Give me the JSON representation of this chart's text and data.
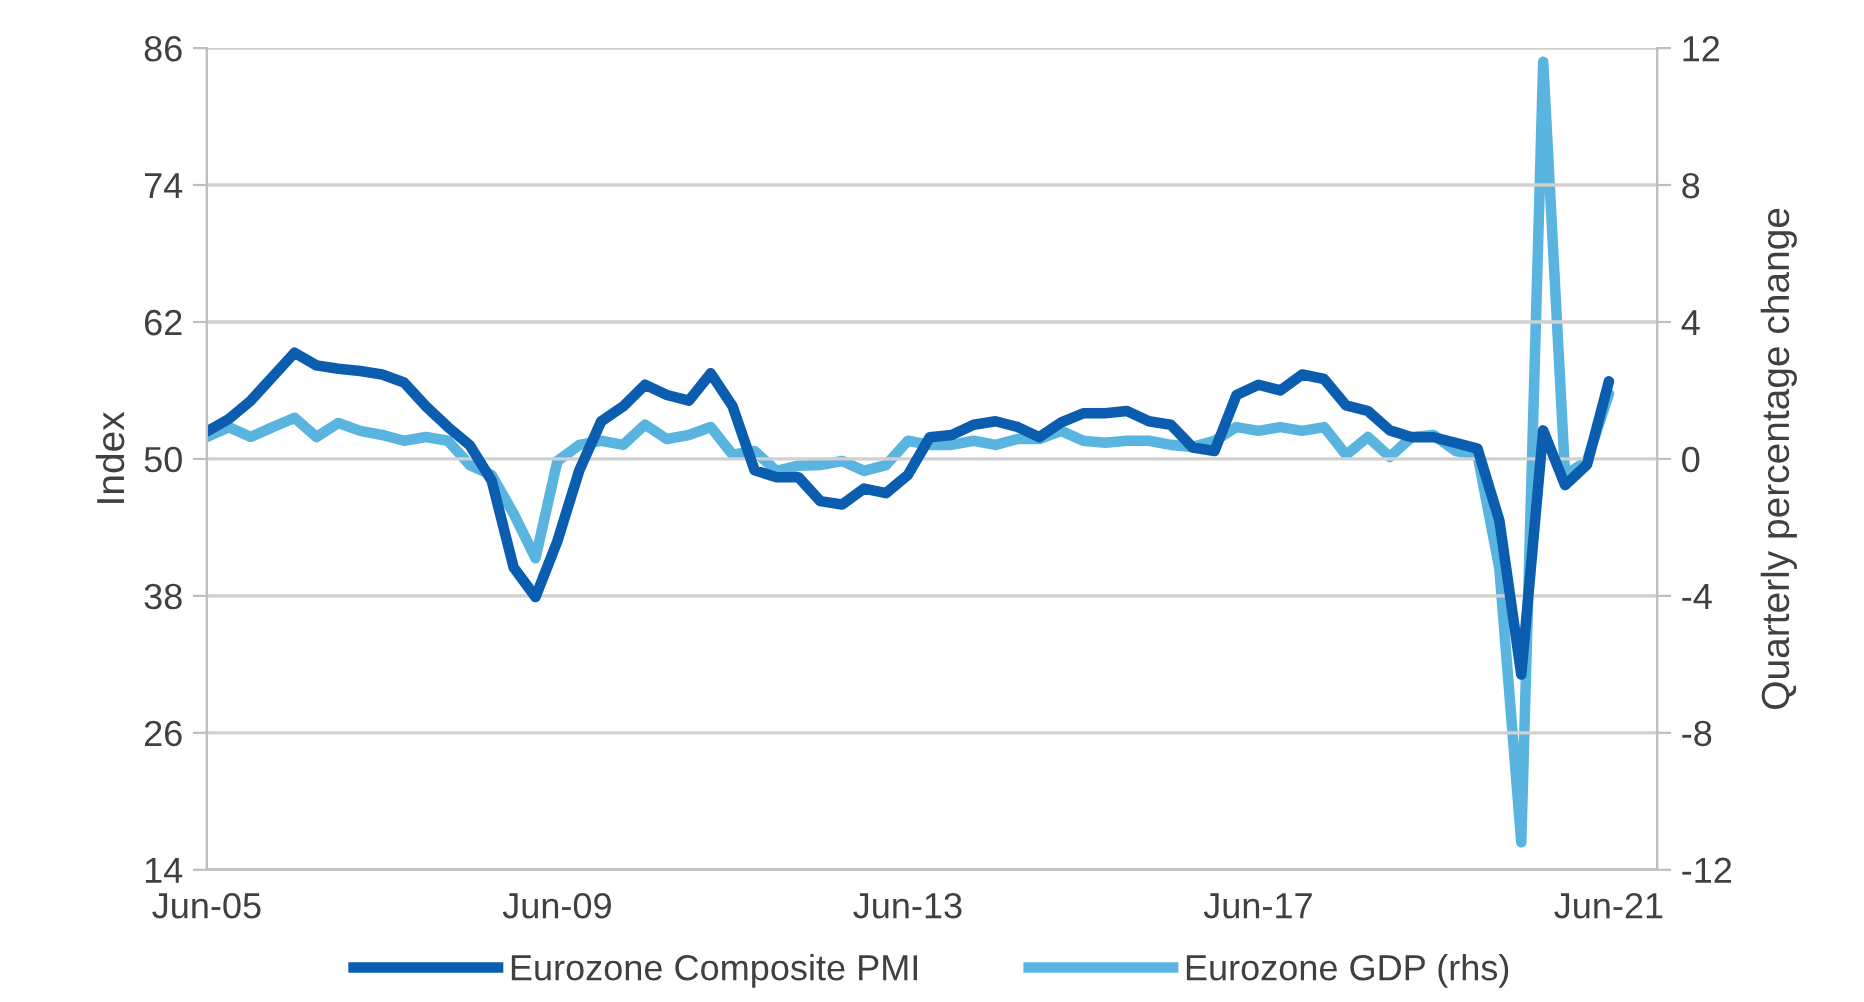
{
  "chart_data": {
    "type": "line",
    "ylabel": "Index",
    "y2label": "Quarterly percentage change",
    "categories": [
      "Jun-05",
      null,
      null,
      null,
      null,
      null,
      null,
      null,
      null,
      null,
      null,
      null,
      null,
      null,
      null,
      null,
      "Jun-09",
      null,
      null,
      null,
      null,
      null,
      null,
      null,
      null,
      null,
      null,
      null,
      null,
      null,
      null,
      null,
      "Jun-13",
      null,
      null,
      null,
      null,
      null,
      null,
      null,
      null,
      null,
      null,
      null,
      null,
      null,
      null,
      null,
      "Jun-17",
      null,
      null,
      null,
      null,
      null,
      null,
      null,
      null,
      null,
      null,
      null,
      null,
      null,
      null,
      null,
      "Jun-21"
    ],
    "series": [
      {
        "name": "Eurozone Composite PMI",
        "color": "#0b5eaf",
        "values": [
          52.4,
          53.5,
          55.1,
          57.2,
          59.3,
          58.2,
          57.9,
          57.7,
          57.4,
          56.7,
          54.6,
          52.8,
          51.2,
          48.1,
          40.5,
          37.9,
          42.8,
          49.0,
          53.3,
          54.6,
          56.5,
          55.6,
          55.1,
          57.5,
          54.6,
          49.0,
          48.4,
          48.4,
          46.3,
          46.0,
          47.4,
          47.0,
          48.6,
          51.9,
          52.1,
          53.0,
          53.3,
          52.8,
          51.9,
          53.2,
          54.0,
          54.0,
          54.2,
          53.3,
          53.0,
          51.0,
          50.7,
          55.6,
          56.5,
          56.0,
          57.4,
          57.0,
          54.7,
          54.2,
          52.5,
          51.9,
          51.9,
          51.4,
          50.9,
          44.6,
          31.1,
          52.5,
          47.7,
          49.5,
          56.8
        ]
      },
      {
        "name": "Eurozone GDP (rhs)",
        "color": "#5ab4e0",
        "axis": "y2",
        "values": [
          0.64,
          0.93,
          0.64,
          0.93,
          1.2,
          0.64,
          1.05,
          0.82,
          0.7,
          0.53,
          0.64,
          0.53,
          -0.18,
          -0.47,
          -1.6,
          -2.9,
          -0.06,
          0.41,
          0.53,
          0.41,
          1.0,
          0.58,
          0.7,
          0.93,
          0.12,
          0.23,
          -0.35,
          -0.2,
          -0.18,
          -0.06,
          -0.35,
          -0.18,
          0.53,
          0.41,
          0.41,
          0.53,
          0.41,
          0.58,
          0.58,
          0.82,
          0.53,
          0.47,
          0.53,
          0.53,
          0.41,
          0.35,
          0.53,
          0.93,
          0.82,
          0.93,
          0.82,
          0.93,
          0.12,
          0.64,
          0.06,
          0.64,
          0.7,
          0.23,
          0.12,
          -3.2,
          -11.2,
          11.6,
          -0.47,
          -0.06,
          1.9
        ]
      }
    ],
    "ylim": [
      14,
      86
    ],
    "yticks": [
      14,
      26,
      38,
      50,
      62,
      74,
      86
    ],
    "y2lim": [
      -12,
      12
    ],
    "y2ticks": [
      -12,
      -8,
      -4,
      0,
      4,
      8,
      12
    ],
    "grid": "y",
    "legend": "bottom",
    "line_style": "solid"
  }
}
